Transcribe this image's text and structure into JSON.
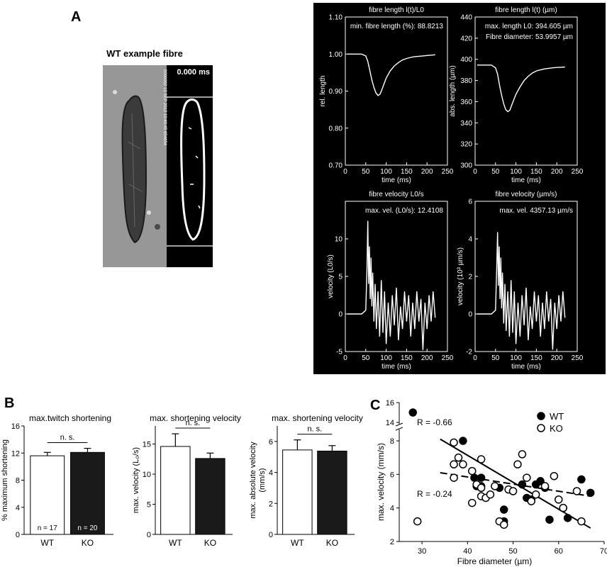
{
  "panel_labels": {
    "a": "A",
    "b": "B",
    "c": "C"
  },
  "fibre_image": {
    "title": "WT example fibre",
    "timestamp": "0.000 ms",
    "stamp_text": "0000002 13 SEP 2012 10:40:45 654654"
  },
  "chart_data": [
    {
      "id": "len-rel",
      "type": "line",
      "title": "fibre length l(t)/L0",
      "annotation": "min. fibre length (%): 88.8213",
      "xlabel": "time (ms)",
      "ylabel": "rel. length",
      "xlim": [
        0,
        250
      ],
      "ylim": [
        0.7,
        1.1
      ],
      "xticks": [
        0,
        50,
        100,
        150,
        200,
        250
      ],
      "yticks": [
        0.7,
        0.8,
        0.9,
        1.0,
        1.1
      ],
      "ytick_labels": [
        "0.70",
        "0.80",
        "0.90",
        "1.00",
        "1.10"
      ],
      "x": [
        5,
        20,
        40,
        50,
        55,
        60,
        65,
        70,
        75,
        80,
        85,
        90,
        95,
        100,
        110,
        120,
        130,
        140,
        150,
        160,
        170,
        180,
        190,
        200,
        210,
        220
      ],
      "y": [
        1.0,
        1.0,
        1.0,
        0.995,
        0.98,
        0.955,
        0.93,
        0.91,
        0.895,
        0.888,
        0.892,
        0.905,
        0.92,
        0.935,
        0.955,
        0.968,
        0.977,
        0.984,
        0.988,
        0.991,
        0.993,
        0.994,
        0.995,
        0.996,
        0.997,
        0.998
      ]
    },
    {
      "id": "len-abs",
      "type": "line",
      "title": "fibre length l(t) (µm)",
      "annotation": "max. length L0: 394.605 µm",
      "annotation2": "Fibre diameter: 53.9957 µm",
      "xlabel": "time (ms)",
      "ylabel": "abs. length (µm)",
      "xlim": [
        0,
        250
      ],
      "ylim": [
        300,
        440
      ],
      "xticks": [
        0,
        50,
        100,
        150,
        200,
        250
      ],
      "yticks": [
        300,
        320,
        340,
        360,
        380,
        400,
        420,
        440
      ],
      "ytick_labels": [
        "300",
        "320",
        "340",
        "360",
        "380",
        "400",
        "420",
        "440"
      ],
      "x": [
        5,
        20,
        40,
        50,
        55,
        60,
        65,
        70,
        75,
        80,
        85,
        90,
        95,
        100,
        110,
        120,
        130,
        140,
        150,
        160,
        170,
        180,
        190,
        200,
        210,
        220
      ],
      "y": [
        394.6,
        394.6,
        394.6,
        392,
        386,
        375,
        366,
        358,
        352.5,
        350.5,
        352,
        357,
        362,
        367,
        374,
        380,
        384,
        387,
        389,
        390,
        391,
        391.5,
        392,
        392.3,
        392.5,
        392.8
      ]
    },
    {
      "id": "vel-rel",
      "type": "line",
      "title": "fibre velocity L0/s",
      "annotation": "max. vel. (L0/s): 12.4108",
      "xlabel": "time (ms)",
      "ylabel": "velocity (L0/s)",
      "xlim": [
        0,
        250
      ],
      "ylim": [
        -5,
        15
      ],
      "xticks": [
        0,
        50,
        100,
        150,
        200,
        250
      ],
      "yticks": [
        -5,
        0,
        5,
        10,
        15
      ],
      "ytick_labels": [
        "-5",
        "0",
        "5",
        "10",
        ""
      ],
      "x": [
        5,
        20,
        40,
        50,
        53,
        55,
        57,
        59,
        61,
        63,
        65,
        67,
        70,
        73,
        76,
        80,
        84,
        88,
        92,
        96,
        100,
        105,
        110,
        115,
        120,
        125,
        130,
        135,
        140,
        145,
        150,
        155,
        160,
        165,
        170,
        175,
        180,
        185,
        190,
        195,
        200,
        205,
        210,
        215,
        220
      ],
      "y": [
        0,
        0,
        0,
        0.5,
        6,
        12.4,
        4,
        9,
        2,
        7.5,
        1,
        5.5,
        -1,
        4,
        -2,
        3,
        -3,
        4.5,
        -2.5,
        3,
        -4,
        1.5,
        -3,
        2.5,
        -1.5,
        3.5,
        -3.5,
        1,
        -2,
        3,
        -1,
        2.5,
        -3,
        1.5,
        -2,
        3,
        -1,
        2,
        -4.8,
        1.5,
        -2,
        2.5,
        -1,
        3,
        -0.5
      ]
    },
    {
      "id": "vel-abs",
      "type": "line",
      "title": "fibre velocity (µm/s)",
      "annotation": "max. vel.  4357.13 µm/s",
      "xlabel": "time (ms)",
      "ylabel": "velocity (10³ µm/s)",
      "xlim": [
        0,
        250
      ],
      "ylim": [
        -2,
        6
      ],
      "xticks": [
        0,
        50,
        100,
        150,
        200,
        250
      ],
      "yticks": [
        -2,
        0,
        2,
        4,
        6
      ],
      "ytick_labels": [
        "-2",
        "0",
        "2",
        "4",
        "6"
      ],
      "x": [
        5,
        20,
        40,
        50,
        53,
        55,
        57,
        59,
        61,
        63,
        65,
        67,
        70,
        73,
        76,
        80,
        84,
        88,
        92,
        96,
        100,
        105,
        110,
        115,
        120,
        125,
        130,
        135,
        140,
        145,
        150,
        155,
        160,
        165,
        170,
        175,
        180,
        185,
        190,
        195,
        200,
        205,
        210,
        215,
        220
      ],
      "y": [
        0,
        0,
        0,
        0.2,
        2.5,
        4.36,
        1.5,
        3.6,
        0.8,
        3,
        0.3,
        2.2,
        -0.5,
        1.6,
        -0.9,
        1.2,
        -1.2,
        1.8,
        -1,
        1.2,
        -1.6,
        0.6,
        -1.2,
        1,
        -0.6,
        1.4,
        -1.4,
        0.4,
        -0.8,
        1.2,
        -0.4,
        1,
        -1.2,
        0.6,
        -0.8,
        1.2,
        -0.4,
        0.8,
        -1.9,
        0.6,
        -0.8,
        1,
        -0.4,
        1.2,
        -0.2
      ]
    },
    {
      "id": "bar-twitch",
      "type": "bar",
      "title": "max.twitch shortening",
      "categories": [
        "WT",
        "KO"
      ],
      "values": [
        11.6,
        12.1
      ],
      "errors": [
        0.5,
        0.6
      ],
      "counts": [
        "n = 17",
        "n = 20"
      ],
      "significance": "n. s.",
      "xlabel": "",
      "ylabel": "% maximum shortening",
      "ylim": [
        0,
        16
      ],
      "yticks": [
        0,
        4,
        8,
        12,
        16
      ],
      "ytick_labels": [
        "0",
        "4",
        "8",
        "12",
        "16"
      ]
    },
    {
      "id": "bar-velrel",
      "type": "bar",
      "title": "max. shortening velocity",
      "categories": [
        "WT",
        "KO"
      ],
      "values": [
        14.6,
        12.6
      ],
      "errors": [
        2.1,
        0.9
      ],
      "significance": "n. s.",
      "xlabel": "",
      "ylabel": "max. velocity (L₀/s)",
      "ylim": [
        0,
        18
      ],
      "yticks": [
        0,
        5,
        10,
        15
      ],
      "ytick_labels": [
        "0",
        "5",
        "10",
        "15"
      ]
    },
    {
      "id": "bar-velabs",
      "type": "bar",
      "title": "max. shortening velocity",
      "categories": [
        "WT",
        "KO"
      ],
      "values": [
        5.45,
        5.38
      ],
      "errors": [
        0.65,
        0.35
      ],
      "significance": "n. s.",
      "xlabel": "",
      "ylabel": "max. absolute velocity",
      "ylabel2": "(mm/s)",
      "ylim": [
        0,
        7
      ],
      "yticks": [
        0,
        2,
        4,
        6
      ],
      "ytick_labels": [
        "0",
        "2",
        "4",
        "6"
      ]
    },
    {
      "id": "scatter-c",
      "type": "scatter",
      "xlabel": "Fibre diameter (µm)",
      "ylabel": "max. velocity (mm/s)",
      "xlim": [
        25,
        70
      ],
      "ylim": [
        2,
        16
      ],
      "xticks": [
        30,
        40,
        50,
        60,
        70
      ],
      "yticks": [
        2,
        4,
        6,
        8,
        14,
        16
      ],
      "ytick_labels": [
        "2",
        "4",
        "6",
        "8",
        "14",
        "16"
      ],
      "legend": [
        "WT",
        "KO"
      ],
      "legend_position": "top-right",
      "series": [
        {
          "name": "WT",
          "x": [
            28,
            39,
            41.5,
            42,
            43,
            43,
            47,
            48,
            48,
            52,
            53,
            54,
            55,
            56,
            57,
            58,
            61,
            62,
            65,
            67
          ],
          "y": [
            15,
            8,
            5.8,
            5.3,
            5.8,
            5.3,
            5.2,
            3.9,
            3.2,
            5.4,
            4.6,
            4.5,
            5.4,
            5.6,
            5.2,
            3.3,
            4.0,
            3.4,
            5.7,
            4.9
          ],
          "fit": {
            "x": [
              34,
              67
            ],
            "y": [
              8.1,
              2.8
            ],
            "label": "R = -0.66"
          }
        },
        {
          "name": "KO",
          "x": [
            29,
            37,
            37,
            37,
            38,
            39,
            41,
            41,
            42,
            43,
            43,
            43,
            44,
            45,
            46,
            47,
            48,
            49,
            50,
            51,
            52,
            53,
            54,
            55,
            57,
            59,
            60,
            61,
            64,
            65
          ],
          "y": [
            3.2,
            7.9,
            6.6,
            5.8,
            7.0,
            6.6,
            4.3,
            6.2,
            5.4,
            6.9,
            5.2,
            4.7,
            4.6,
            4.8,
            5.3,
            3.2,
            3.0,
            5.1,
            5.0,
            6.6,
            7.2,
            5.8,
            4.4,
            4.8,
            5.3,
            5.9,
            4.5,
            4.0,
            5.0,
            3.2
          ],
          "fit": {
            "x": [
              34,
              67
            ],
            "y": [
              6.1,
              4.7
            ],
            "label": "R = -0.24"
          }
        }
      ]
    }
  ]
}
